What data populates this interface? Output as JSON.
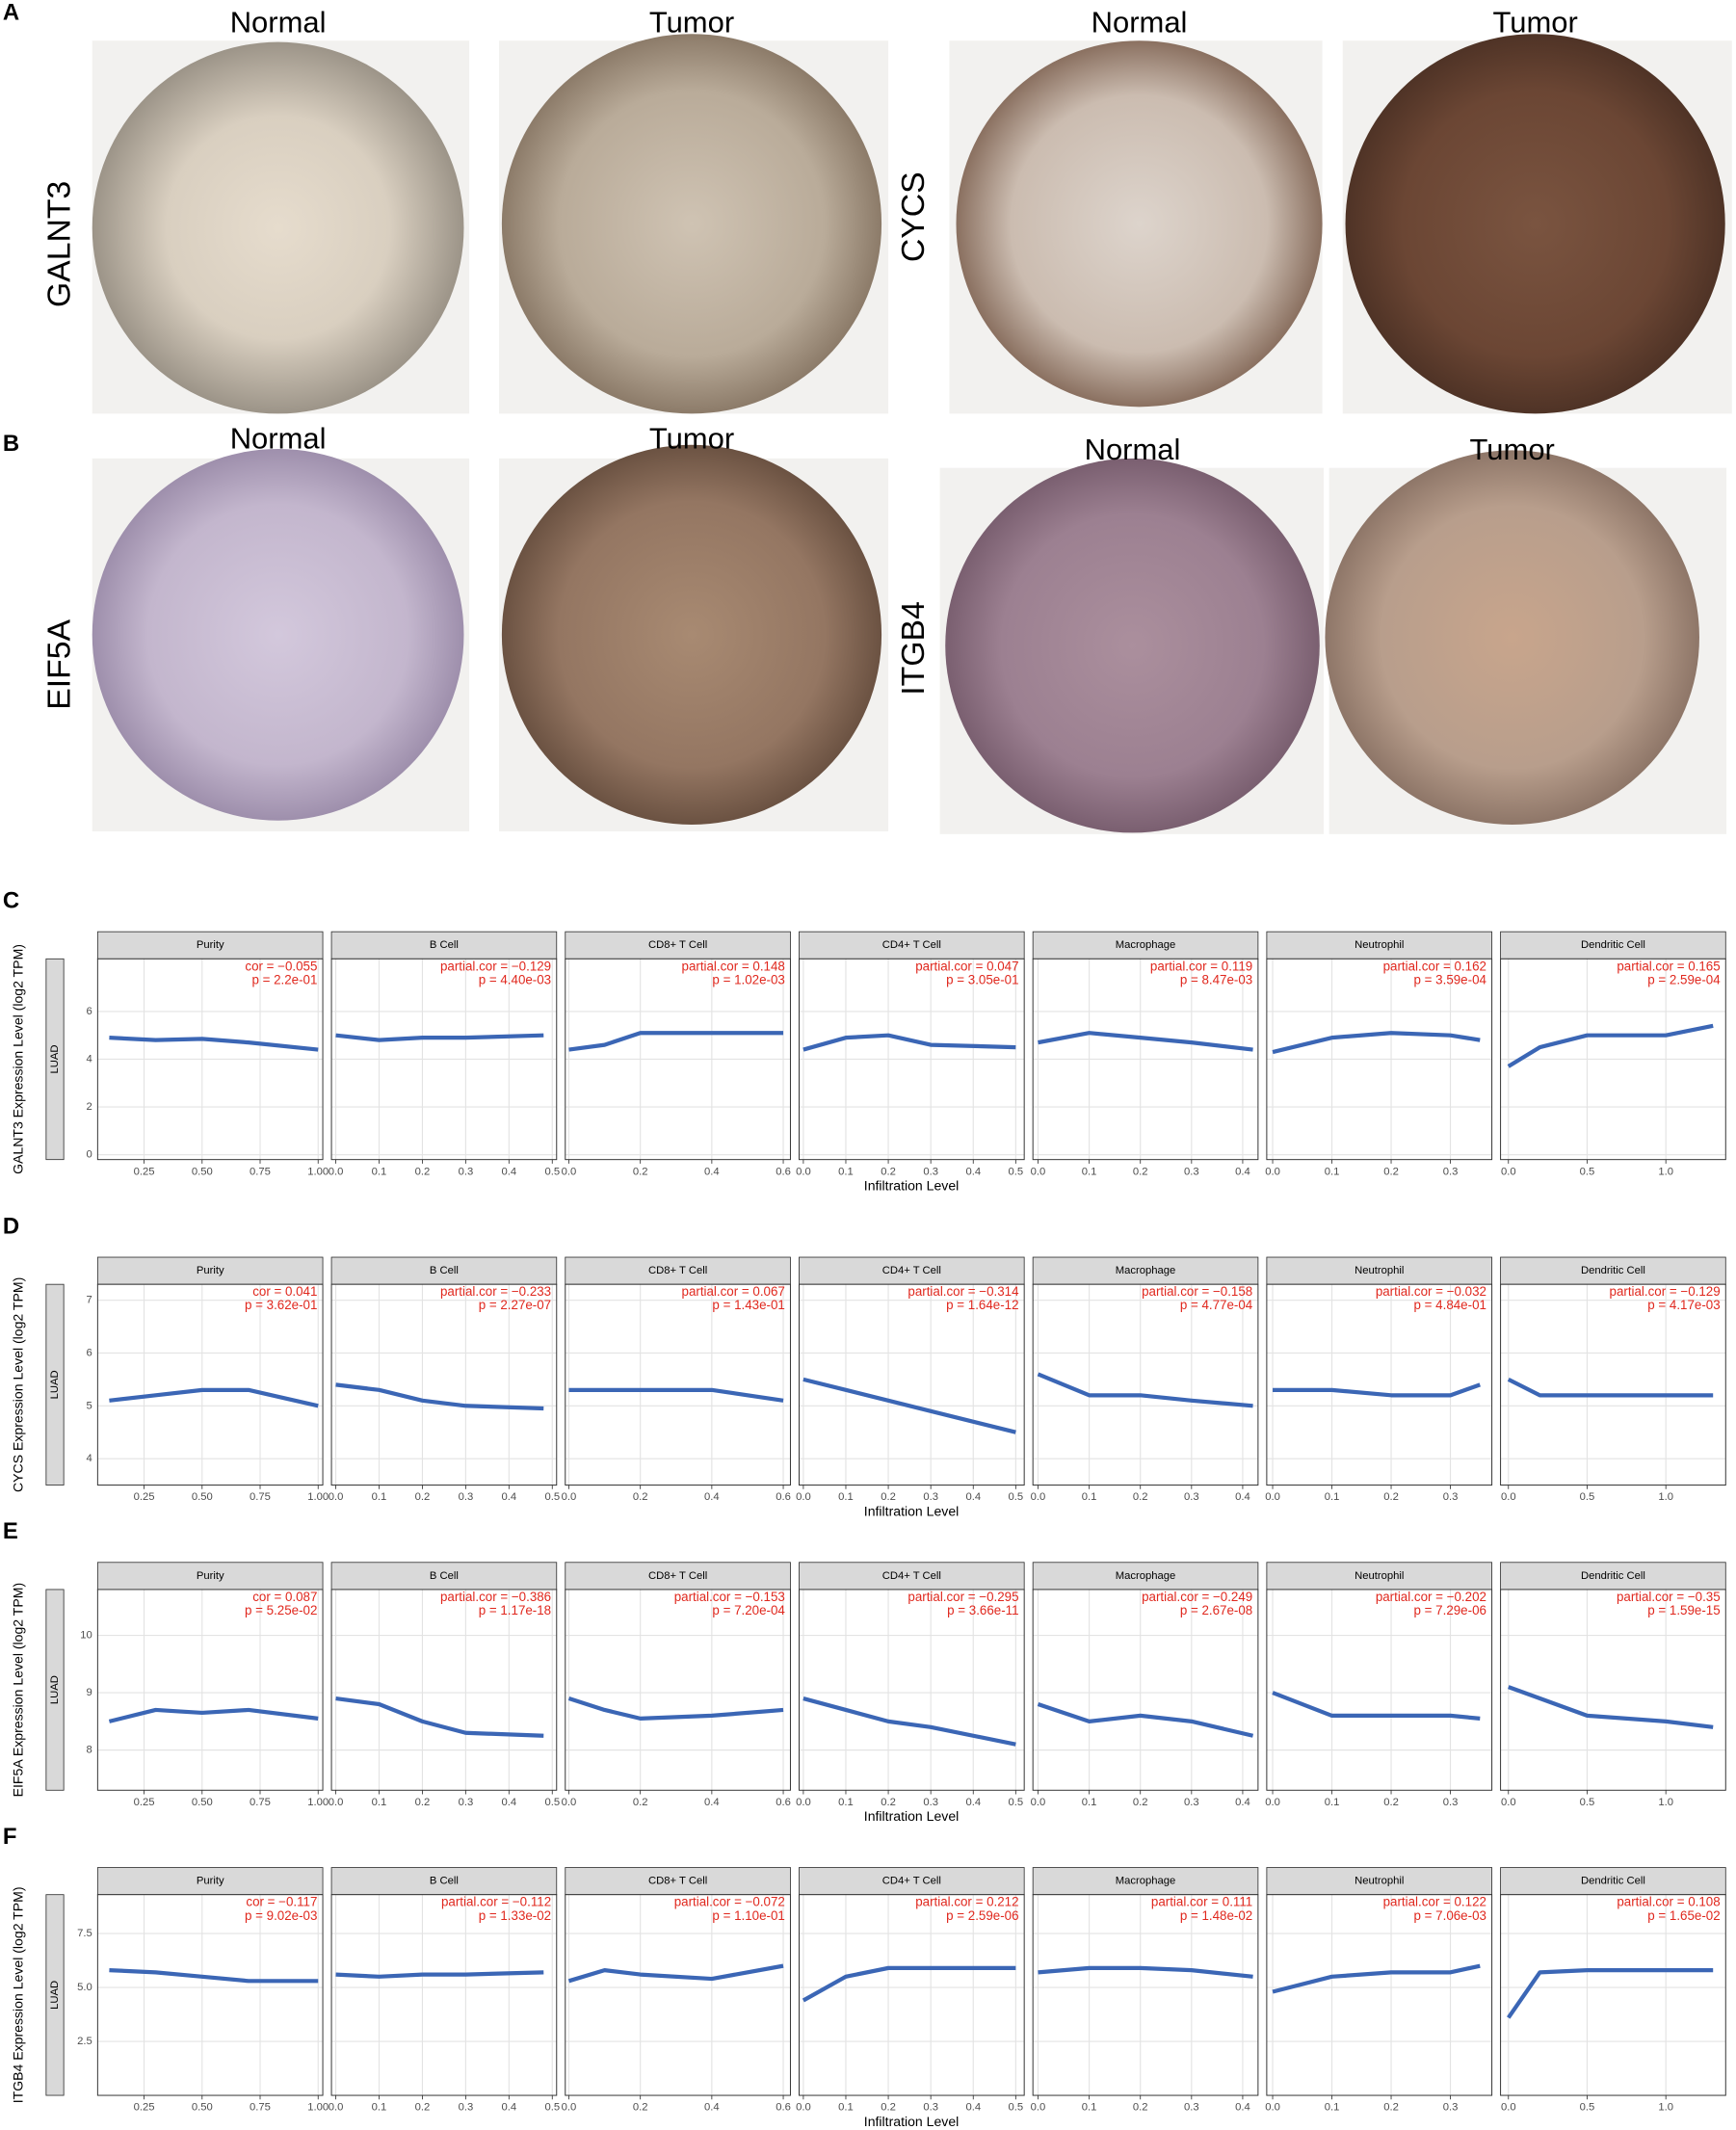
{
  "ihc": {
    "panels": [
      {
        "letter": "A",
        "genes": [
          {
            "name": "GALNT3",
            "normal": "Normal",
            "tumor": "Tumor"
          },
          {
            "name": "CYCS",
            "normal": "Normal",
            "tumor": "Tumor"
          }
        ]
      },
      {
        "letter": "B",
        "genes": [
          {
            "name": "EIF5A",
            "normal": "Normal",
            "tumor": "Tumor"
          },
          {
            "name": "ITGB4",
            "normal": "Normal",
            "tumor": "Tumor"
          }
        ]
      }
    ]
  },
  "chart_data": {
    "type": "line",
    "x_label": "Infiltration Level",
    "strip": "LUAD",
    "grid": true,
    "trend_color": "#3b66b5",
    "annotation_color": "#e0281e",
    "facets": [
      {
        "title": "Purity",
        "xlim": [
          0.05,
          1.02
        ],
        "xticks": [
          {
            "value": 0.25,
            "label": "0.25"
          },
          {
            "value": 0.5,
            "label": "0.50"
          },
          {
            "value": 0.75,
            "label": "0.75"
          },
          {
            "value": 1,
            "label": "1.00"
          }
        ],
        "trend_x": [
          0.1,
          0.3,
          0.5,
          0.7,
          1.0
        ]
      },
      {
        "title": "B Cell",
        "xlim": [
          -0.01,
          0.51
        ],
        "xticks": [
          {
            "value": 0,
            "label": "0.0"
          },
          0.1,
          0.2,
          0.3,
          0.4,
          0.5
        ],
        "trend_x": [
          0,
          0.1,
          0.2,
          0.3,
          0.48
        ]
      },
      {
        "title": "CD8+ T Cell",
        "xlim": [
          -0.01,
          0.62
        ],
        "xticks": [
          {
            "value": 0,
            "label": "0.0"
          },
          0.2,
          0.4,
          0.6
        ],
        "trend_x": [
          0,
          0.1,
          0.2,
          0.4,
          0.6
        ]
      },
      {
        "title": "CD4+ T Cell",
        "xlim": [
          -0.01,
          0.52
        ],
        "xticks": [
          {
            "value": 0,
            "label": "0.0"
          },
          0.1,
          0.2,
          0.3,
          0.4,
          0.5
        ],
        "trend_x": [
          0,
          0.1,
          0.2,
          0.3,
          0.5
        ]
      },
      {
        "title": "Macrophage",
        "xlim": [
          -0.01,
          0.43
        ],
        "xticks": [
          {
            "value": 0,
            "label": "0.0"
          },
          0.1,
          0.2,
          0.3,
          0.4
        ],
        "trend_x": [
          0,
          0.1,
          0.2,
          0.3,
          0.42
        ]
      },
      {
        "title": "Neutrophil",
        "xlim": [
          -0.01,
          0.37
        ],
        "xticks": [
          {
            "value": 0,
            "label": "0.0"
          },
          0.1,
          0.2,
          0.3
        ],
        "trend_x": [
          0,
          0.1,
          0.2,
          0.3,
          0.35
        ]
      },
      {
        "title": "Dendritic Cell",
        "xlim": [
          -0.05,
          1.38
        ],
        "xticks": [
          {
            "value": 0,
            "label": "0.0"
          },
          0.5,
          {
            "value": 1,
            "label": "1.0"
          }
        ],
        "trend_x": [
          0,
          0.2,
          0.5,
          1.0,
          1.3
        ]
      }
    ],
    "rows": [
      {
        "panel": "C",
        "y_label": "GALNT3 Expression Level (log2 TPM)",
        "ylim": [
          -0.2,
          8.2
        ],
        "yticks": [
          0,
          2,
          4,
          6
        ],
        "annotations": [
          [
            "cor = −0.055",
            "p = 2.2e-01"
          ],
          [
            "partial.cor = −0.129",
            "p = 4.40e-03"
          ],
          [
            "partial.cor = 0.148",
            "p = 1.02e-03"
          ],
          [
            "partial.cor = 0.047",
            "p = 3.05e-01"
          ],
          [
            "partial.cor = 0.119",
            "p = 8.47e-03"
          ],
          [
            "partial.cor = 0.162",
            "p = 3.59e-04"
          ],
          [
            "partial.cor = 0.165",
            "p = 2.59e-04"
          ]
        ],
        "trends": [
          [
            4.9,
            4.8,
            4.85,
            4.7,
            4.4
          ],
          [
            5.0,
            4.8,
            4.9,
            4.9,
            5.0
          ],
          [
            4.4,
            4.6,
            5.1,
            5.1,
            5.1
          ],
          [
            4.4,
            4.9,
            5.0,
            4.6,
            4.5
          ],
          [
            4.7,
            5.1,
            4.9,
            4.7,
            4.4
          ],
          [
            4.3,
            4.9,
            5.1,
            5.0,
            4.8
          ],
          [
            3.7,
            4.5,
            5.0,
            5.0,
            5.4
          ]
        ]
      },
      {
        "panel": "D",
        "y_label": "CYCS Expression Level (log2 TPM)",
        "ylim": [
          3.5,
          7.3
        ],
        "yticks": [
          4,
          5,
          6,
          7
        ],
        "annotations": [
          [
            "cor = 0.041",
            "p = 3.62e-01"
          ],
          [
            "partial.cor = −0.233",
            "p = 2.27e-07"
          ],
          [
            "partial.cor = 0.067",
            "p = 1.43e-01"
          ],
          [
            "partial.cor = −0.314",
            "p = 1.64e-12"
          ],
          [
            "partial.cor = −0.158",
            "p = 4.77e-04"
          ],
          [
            "partial.cor = −0.032",
            "p = 4.84e-01"
          ],
          [
            "partial.cor = −0.129",
            "p = 4.17e-03"
          ]
        ],
        "trends": [
          [
            5.1,
            5.2,
            5.3,
            5.3,
            5.0
          ],
          [
            5.4,
            5.3,
            5.1,
            5.0,
            4.95
          ],
          [
            5.3,
            5.3,
            5.3,
            5.3,
            5.1
          ],
          [
            5.5,
            5.3,
            5.1,
            4.9,
            4.5
          ],
          [
            5.6,
            5.2,
            5.2,
            5.1,
            5.0
          ],
          [
            5.3,
            5.3,
            5.2,
            5.2,
            5.4
          ],
          [
            5.5,
            5.2,
            5.2,
            5.2,
            5.2
          ]
        ]
      },
      {
        "panel": "E",
        "y_label": "EIF5A Expression Level (log2 TPM)",
        "ylim": [
          7.3,
          10.8
        ],
        "yticks": [
          8,
          9,
          10
        ],
        "annotations": [
          [
            "cor = 0.087",
            "p = 5.25e-02"
          ],
          [
            "partial.cor = −0.386",
            "p = 1.17e-18"
          ],
          [
            "partial.cor = −0.153",
            "p = 7.20e-04"
          ],
          [
            "partial.cor = −0.295",
            "p = 3.66e-11"
          ],
          [
            "partial.cor = −0.249",
            "p = 2.67e-08"
          ],
          [
            "partial.cor = −0.202",
            "p = 7.29e-06"
          ],
          [
            "partial.cor = −0.35",
            "p = 1.59e-15"
          ]
        ],
        "trends": [
          [
            8.5,
            8.7,
            8.65,
            8.7,
            8.55
          ],
          [
            8.9,
            8.8,
            8.5,
            8.3,
            8.25
          ],
          [
            8.9,
            8.7,
            8.55,
            8.6,
            8.7
          ],
          [
            8.9,
            8.7,
            8.5,
            8.4,
            8.1
          ],
          [
            8.8,
            8.5,
            8.6,
            8.5,
            8.25
          ],
          [
            9.0,
            8.6,
            8.6,
            8.6,
            8.55
          ],
          [
            9.1,
            8.9,
            8.6,
            8.5,
            8.4
          ]
        ]
      },
      {
        "panel": "F",
        "y_label": "ITGB4 Expression Level (log2 TPM)",
        "ylim": [
          0,
          9.3
        ],
        "yticks": [
          2.5,
          {
            "value": 5,
            "label": "5.0"
          },
          7.5
        ],
        "annotations": [
          [
            "cor = −0.117",
            "p = 9.02e-03"
          ],
          [
            "partial.cor = −0.112",
            "p = 1.33e-02"
          ],
          [
            "partial.cor = −0.072",
            "p = 1.10e-01"
          ],
          [
            "partial.cor = 0.212",
            "p = 2.59e-06"
          ],
          [
            "partial.cor = 0.111",
            "p = 1.48e-02"
          ],
          [
            "partial.cor = 0.122",
            "p = 7.06e-03"
          ],
          [
            "partial.cor = 0.108",
            "p = 1.65e-02"
          ]
        ],
        "trends": [
          [
            5.8,
            5.7,
            5.5,
            5.3,
            5.3
          ],
          [
            5.6,
            5.5,
            5.6,
            5.6,
            5.7
          ],
          [
            5.3,
            5.8,
            5.6,
            5.4,
            6.0
          ],
          [
            4.4,
            5.5,
            5.9,
            5.9,
            5.9
          ],
          [
            5.7,
            5.9,
            5.9,
            5.8,
            5.5
          ],
          [
            4.8,
            5.5,
            5.7,
            5.7,
            6.0
          ],
          [
            3.6,
            5.7,
            5.8,
            5.8,
            5.8
          ]
        ]
      }
    ]
  }
}
